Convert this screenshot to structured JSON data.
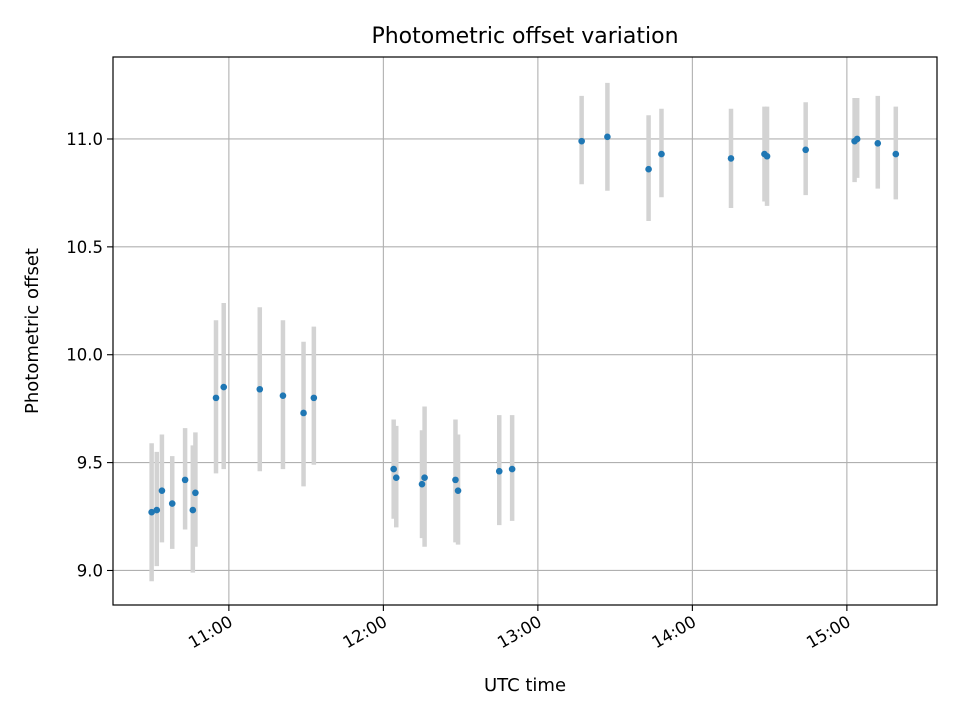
{
  "chart_data": {
    "type": "scatter",
    "title": "Photometric offset variation",
    "xlabel": "UTC time",
    "ylabel": "Photometric offset",
    "xlim": [
      "10:15",
      "15:35"
    ],
    "ylim": [
      8.84,
      11.38
    ],
    "x_ticks": [
      "11:00",
      "12:00",
      "13:00",
      "14:00",
      "15:00"
    ],
    "y_ticks": [
      "9.0",
      "9.5",
      "10.0",
      "10.5",
      "11.0"
    ],
    "grid": true,
    "point_color": "#1f77b4",
    "errorbar_color": "#d3d3d3",
    "points": [
      {
        "x": "10:30",
        "y": 9.27,
        "low": 8.95,
        "high": 9.59
      },
      {
        "x": "10:32",
        "y": 9.28,
        "low": 9.02,
        "high": 9.55
      },
      {
        "x": "10:34",
        "y": 9.37,
        "low": 9.13,
        "high": 9.63
      },
      {
        "x": "10:38",
        "y": 9.31,
        "low": 9.1,
        "high": 9.53
      },
      {
        "x": "10:43",
        "y": 9.42,
        "low": 9.19,
        "high": 9.66
      },
      {
        "x": "10:46",
        "y": 9.28,
        "low": 8.99,
        "high": 9.58
      },
      {
        "x": "10:47",
        "y": 9.36,
        "low": 9.11,
        "high": 9.64
      },
      {
        "x": "10:55",
        "y": 9.8,
        "low": 9.45,
        "high": 10.16
      },
      {
        "x": "10:58",
        "y": 9.85,
        "low": 9.47,
        "high": 10.24
      },
      {
        "x": "11:12",
        "y": 9.84,
        "low": 9.46,
        "high": 10.22
      },
      {
        "x": "11:21",
        "y": 9.81,
        "low": 9.47,
        "high": 10.16
      },
      {
        "x": "11:29",
        "y": 9.73,
        "low": 9.39,
        "high": 10.06
      },
      {
        "x": "11:33",
        "y": 9.8,
        "low": 9.49,
        "high": 10.13
      },
      {
        "x": "12:04",
        "y": 9.47,
        "low": 9.24,
        "high": 9.7
      },
      {
        "x": "12:05",
        "y": 9.43,
        "low": 9.2,
        "high": 9.67
      },
      {
        "x": "12:15",
        "y": 9.4,
        "low": 9.15,
        "high": 9.65
      },
      {
        "x": "12:16",
        "y": 9.43,
        "low": 9.11,
        "high": 9.76
      },
      {
        "x": "12:28",
        "y": 9.42,
        "low": 9.13,
        "high": 9.7
      },
      {
        "x": "12:29",
        "y": 9.37,
        "low": 9.12,
        "high": 9.63
      },
      {
        "x": "12:45",
        "y": 9.46,
        "low": 9.21,
        "high": 9.72
      },
      {
        "x": "12:50",
        "y": 9.47,
        "low": 9.23,
        "high": 9.72
      },
      {
        "x": "13:17",
        "y": 10.99,
        "low": 10.79,
        "high": 11.2
      },
      {
        "x": "13:27",
        "y": 11.01,
        "low": 10.76,
        "high": 11.26
      },
      {
        "x": "13:43",
        "y": 10.86,
        "low": 10.62,
        "high": 11.11
      },
      {
        "x": "13:48",
        "y": 10.93,
        "low": 10.73,
        "high": 11.14
      },
      {
        "x": "14:15",
        "y": 10.91,
        "low": 10.68,
        "high": 11.14
      },
      {
        "x": "14:28",
        "y": 10.93,
        "low": 10.71,
        "high": 11.15
      },
      {
        "x": "14:29",
        "y": 10.92,
        "low": 10.69,
        "high": 11.15
      },
      {
        "x": "14:44",
        "y": 10.95,
        "low": 10.74,
        "high": 11.17
      },
      {
        "x": "15:03",
        "y": 10.99,
        "low": 10.8,
        "high": 11.19
      },
      {
        "x": "15:04",
        "y": 11.0,
        "low": 10.82,
        "high": 11.19
      },
      {
        "x": "15:12",
        "y": 10.98,
        "low": 10.77,
        "high": 11.2
      },
      {
        "x": "15:19",
        "y": 10.93,
        "low": 10.72,
        "high": 11.15
      }
    ]
  }
}
